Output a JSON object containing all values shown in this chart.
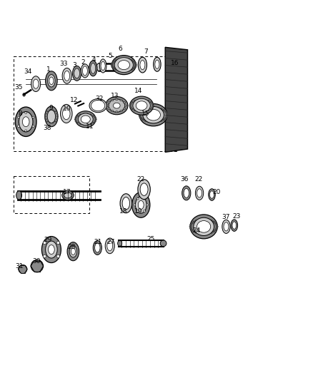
{
  "bg_color": "#ffffff",
  "line_color": "#000000",
  "gear_color": "#888888",
  "dark_gear": "#444444",
  "light_part": "#cccccc"
}
